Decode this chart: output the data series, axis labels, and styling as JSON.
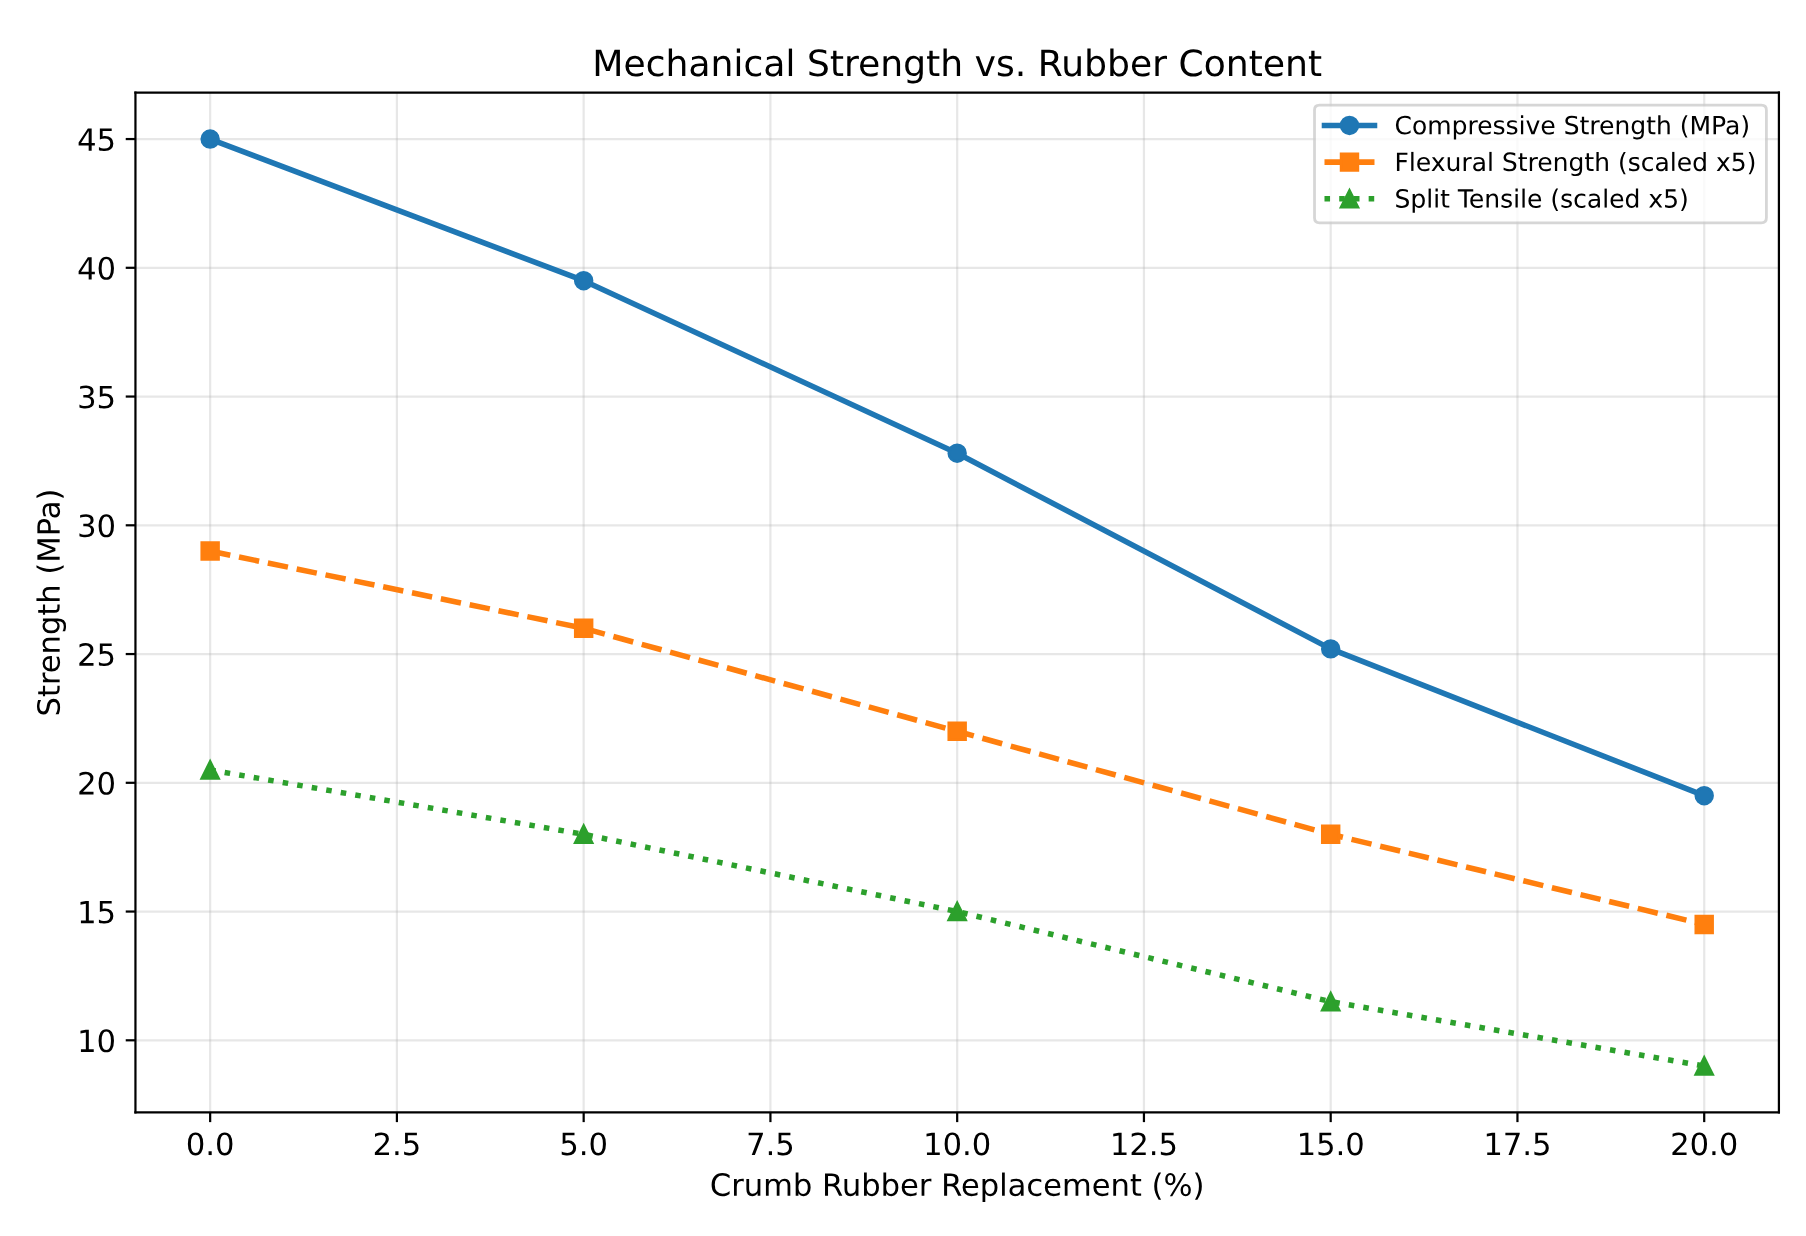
{
  "chart_data": {
    "type": "line",
    "title": "Mechanical Strength vs. Rubber Content",
    "xlabel": "Crumb Rubber Replacement (%)",
    "ylabel": "Strength (MPa)",
    "x": [
      0,
      5,
      10,
      15,
      20
    ],
    "series": [
      {
        "name": "Compressive Strength (MPa)",
        "color": "#1f77b4",
        "values": [
          45,
          39.5,
          32.8,
          25.2,
          19.5
        ],
        "marker": "circle",
        "line_style": "solid"
      },
      {
        "name": "Flexural Strength (scaled x5)",
        "color": "#ff7f0e",
        "values": [
          29,
          26,
          22,
          18,
          14.5
        ],
        "marker": "square",
        "line_style": "dashed"
      },
      {
        "name": "Split Tensile (scaled x5)",
        "color": "#2ca02c",
        "values": [
          20.5,
          18,
          15,
          11.5,
          9
        ],
        "marker": "triangle",
        "line_style": "dotted"
      }
    ],
    "xlim": [
      -1,
      21
    ],
    "xticks": [
      {
        "value": 0,
        "label": "0.0"
      },
      {
        "value": 2.5,
        "label": "2.5"
      },
      {
        "value": 5,
        "label": "5.0"
      },
      {
        "value": 7.5,
        "label": "7.5"
      },
      {
        "value": 10,
        "label": "10.0"
      },
      {
        "value": 12.5,
        "label": "12.5"
      },
      {
        "value": 15,
        "label": "15.0"
      },
      {
        "value": 17.5,
        "label": "17.5"
      },
      {
        "value": 20,
        "label": "20.0"
      }
    ],
    "ylim": [
      7.2,
      46.8
    ],
    "yticks": [
      10,
      15,
      20,
      25,
      30,
      35,
      40,
      45
    ],
    "grid": true,
    "legend": "top right"
  }
}
